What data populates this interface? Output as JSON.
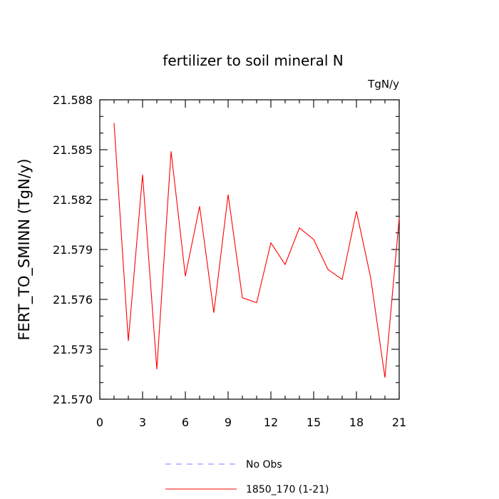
{
  "chart_data": {
    "type": "line",
    "title": "fertilizer to soil mineral N",
    "units": "TgN/y",
    "xlabel": "",
    "ylabel": "FERT_TO_SMINN  (TgN/y)",
    "xlim": [
      0,
      21
    ],
    "ylim": [
      21.57,
      21.588
    ],
    "x_ticks": [
      0,
      3,
      6,
      9,
      12,
      15,
      18,
      21
    ],
    "x_tick_labels": [
      "0",
      "3",
      "6",
      "9",
      "12",
      "15",
      "18",
      "21"
    ],
    "y_ticks": [
      21.57,
      21.573,
      21.576,
      21.579,
      21.582,
      21.585,
      21.588
    ],
    "y_tick_labels": [
      "21.570",
      "21.573",
      "21.576",
      "21.579",
      "21.582",
      "21.585",
      "21.588"
    ],
    "grid": false,
    "legend_position": "bottom",
    "legend": [
      {
        "label": "No Obs",
        "color": "#8080ff",
        "style": "dashed"
      },
      {
        "label": "1850_170 (1-21)",
        "color": "#ff0000",
        "style": "solid"
      }
    ],
    "series": [
      {
        "name": "1850_170 (1-21)",
        "color": "#ff0000",
        "x": [
          1,
          2,
          3,
          4,
          5,
          6,
          7,
          8,
          9,
          10,
          11,
          12,
          13,
          14,
          15,
          16,
          17,
          18,
          19,
          20,
          21
        ],
        "values": [
          21.5866,
          21.5735,
          21.5835,
          21.5718,
          21.5849,
          21.5774,
          21.5816,
          21.5752,
          21.5823,
          21.5761,
          21.5758,
          21.5794,
          21.5781,
          21.5803,
          21.5796,
          21.5778,
          21.5772,
          21.5813,
          21.5773,
          21.5713,
          21.5809
        ]
      }
    ]
  }
}
